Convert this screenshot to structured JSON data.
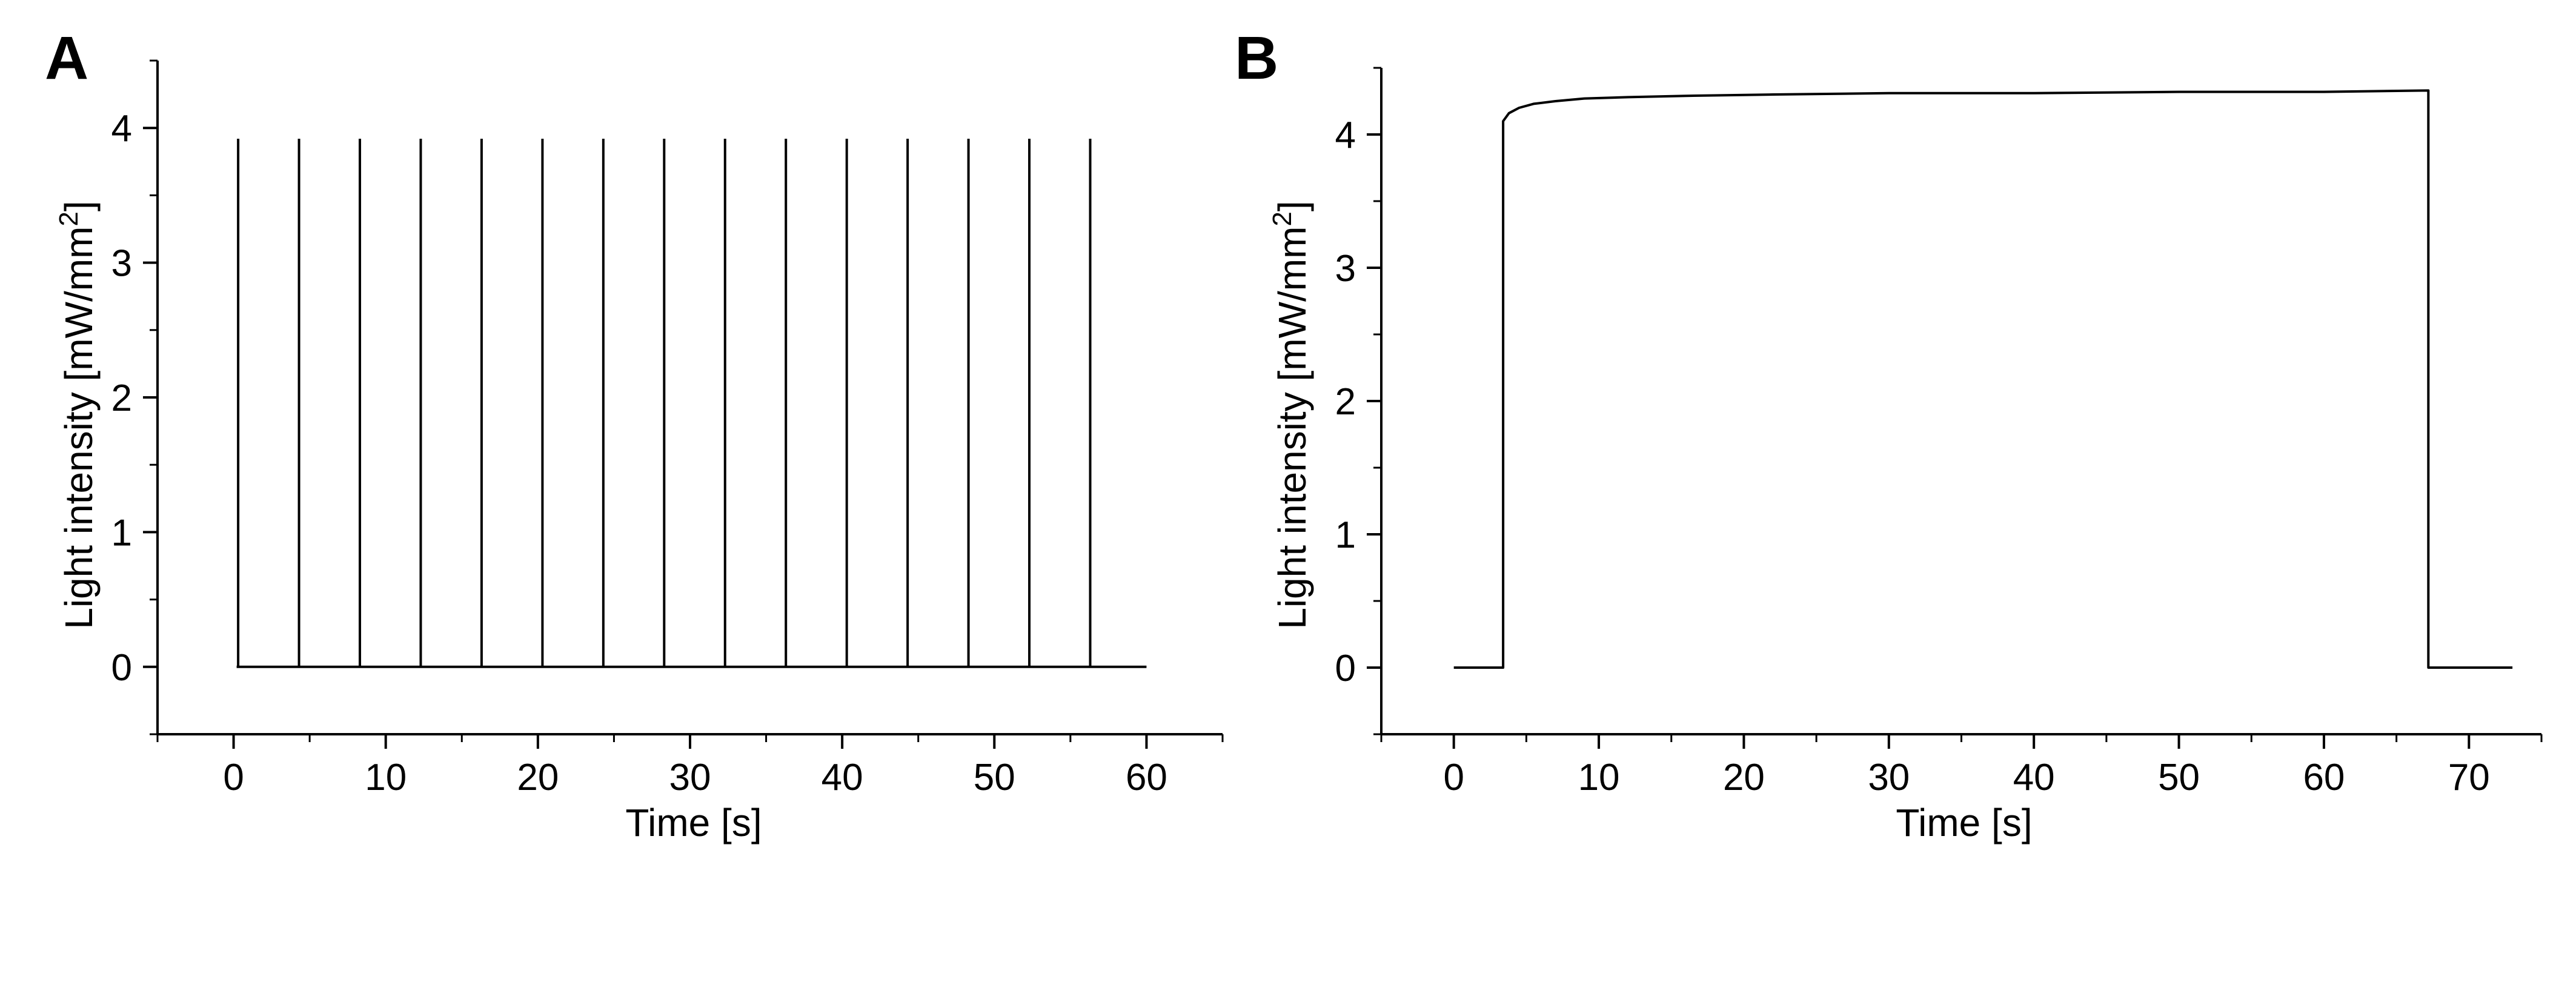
{
  "chart_data": [
    {
      "panel": "A",
      "type": "line",
      "xlabel": "Time [s]",
      "ylabel": "Light intensity [mW/mm",
      "ylabel_superscript": "2",
      "ylabel_close": "]",
      "xlim": [
        -5,
        65
      ],
      "ylim": [
        -0.5,
        4.5
      ],
      "xticks": [
        0,
        10,
        20,
        30,
        40,
        50,
        60
      ],
      "yticks": [
        0,
        1,
        2,
        3,
        4
      ],
      "grid": false,
      "legend": "none",
      "baseline": 0,
      "baseline_range": [
        0.2,
        60
      ],
      "pulse_peak": 3.92,
      "pulse_times": [
        0.3,
        4.3,
        8.3,
        12.3,
        16.3,
        20.3,
        24.3,
        28.3,
        32.3,
        36.3,
        40.3,
        44.3,
        48.3,
        52.3,
        56.3
      ],
      "color": "#000000"
    },
    {
      "panel": "B",
      "type": "line",
      "xlabel": "Time [s]",
      "ylabel": "Light intensity [mW/mm",
      "ylabel_superscript": "2",
      "ylabel_close": "]",
      "xlim": [
        -5,
        75
      ],
      "ylim": [
        -0.5,
        4.5
      ],
      "xticks": [
        0,
        10,
        20,
        30,
        40,
        50,
        60,
        70
      ],
      "yticks": [
        0,
        1,
        2,
        3,
        4
      ],
      "grid": false,
      "legend": "none",
      "x": [
        0,
        3.4,
        3.4,
        3.8,
        4.5,
        5.5,
        7,
        9,
        12,
        16,
        22,
        30,
        40,
        50,
        60,
        67.2,
        67.2,
        73
      ],
      "y": [
        0,
        0,
        4.1,
        4.16,
        4.2,
        4.23,
        4.25,
        4.27,
        4.28,
        4.29,
        4.3,
        4.31,
        4.31,
        4.32,
        4.32,
        4.33,
        0,
        0
      ],
      "color": "#000000"
    }
  ]
}
